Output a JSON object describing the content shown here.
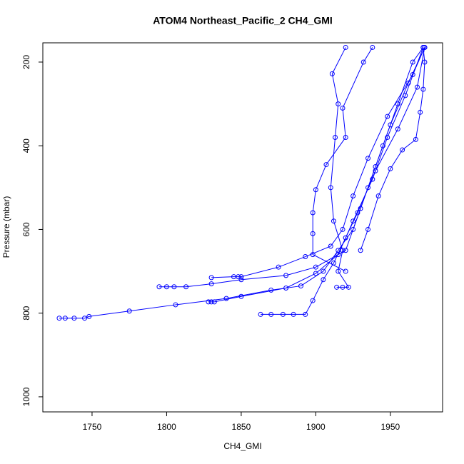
{
  "chart_data": {
    "type": "line",
    "title": "ATOM4 Northeast_Pacific_2 CH4_GMI",
    "x_label": "CH4_GMI",
    "y_label": "Pressure (mbar)",
    "color": "#0000ff",
    "xlim": [
      1717,
      1985
    ],
    "ylim": [
      1036,
      154
    ],
    "xticks": [
      1750,
      1800,
      1850,
      1900,
      1950
    ],
    "yticks": [
      200,
      400,
      600,
      800,
      1000
    ],
    "series": [
      {
        "x": [
          1728,
          1732,
          1738,
          1745,
          1748,
          1775,
          1806,
          1840,
          1870,
          1890,
          1905,
          1915,
          1925,
          1935,
          1945,
          1955,
          1965,
          1972
        ],
        "values": [
          812,
          812,
          812,
          812,
          808,
          795,
          780,
          765,
          745,
          735,
          700,
          650,
          600,
          500,
          400,
          300,
          200,
          165
        ]
      },
      {
        "x": [
          1795,
          1800,
          1805,
          1813,
          1830,
          1850,
          1880,
          1900,
          1920,
          1930,
          1940,
          1950,
          1962,
          1973
        ],
        "values": [
          737,
          737,
          737,
          737,
          730,
          720,
          710,
          690,
          650,
          550,
          450,
          350,
          250,
          165
        ]
      },
      {
        "x": [
          1828,
          1830,
          1832,
          1850,
          1880,
          1900,
          1915,
          1925,
          1938,
          1948,
          1960,
          1972
        ],
        "values": [
          773,
          773,
          773,
          760,
          740,
          705,
          660,
          580,
          480,
          380,
          280,
          165
        ]
      },
      {
        "x": [
          1830,
          1845,
          1848,
          1850,
          1875,
          1893,
          1910,
          1918,
          1925,
          1935,
          1948,
          1965,
          1973
        ],
        "values": [
          715,
          713,
          713,
          713,
          690,
          665,
          640,
          600,
          520,
          430,
          330,
          230,
          165
        ]
      },
      {
        "x": [
          1863,
          1870,
          1878,
          1885,
          1893,
          1898,
          1905,
          1912,
          1920,
          1928,
          1940,
          1955,
          1968,
          1973
        ],
        "values": [
          803,
          803,
          803,
          803,
          803,
          770,
          720,
          680,
          620,
          560,
          460,
          360,
          260,
          165
        ]
      },
      {
        "x": [
          1914,
          1918,
          1922,
          1915,
          1918,
          1912,
          1910,
          1913,
          1915,
          1911,
          1920
        ],
        "values": [
          738,
          738,
          738,
          700,
          650,
          580,
          500,
          380,
          300,
          228,
          165
        ]
      },
      {
        "x": [
          1920,
          1898,
          1898,
          1898,
          1900,
          1907,
          1920,
          1918,
          1932,
          1938
        ],
        "values": [
          700,
          660,
          610,
          560,
          505,
          445,
          380,
          310,
          200,
          165
        ]
      },
      {
        "x": [
          1930,
          1935,
          1942,
          1950,
          1958,
          1967,
          1970,
          1972,
          1973,
          1972
        ],
        "values": [
          650,
          600,
          520,
          455,
          410,
          385,
          320,
          265,
          200,
          165
        ]
      }
    ]
  }
}
